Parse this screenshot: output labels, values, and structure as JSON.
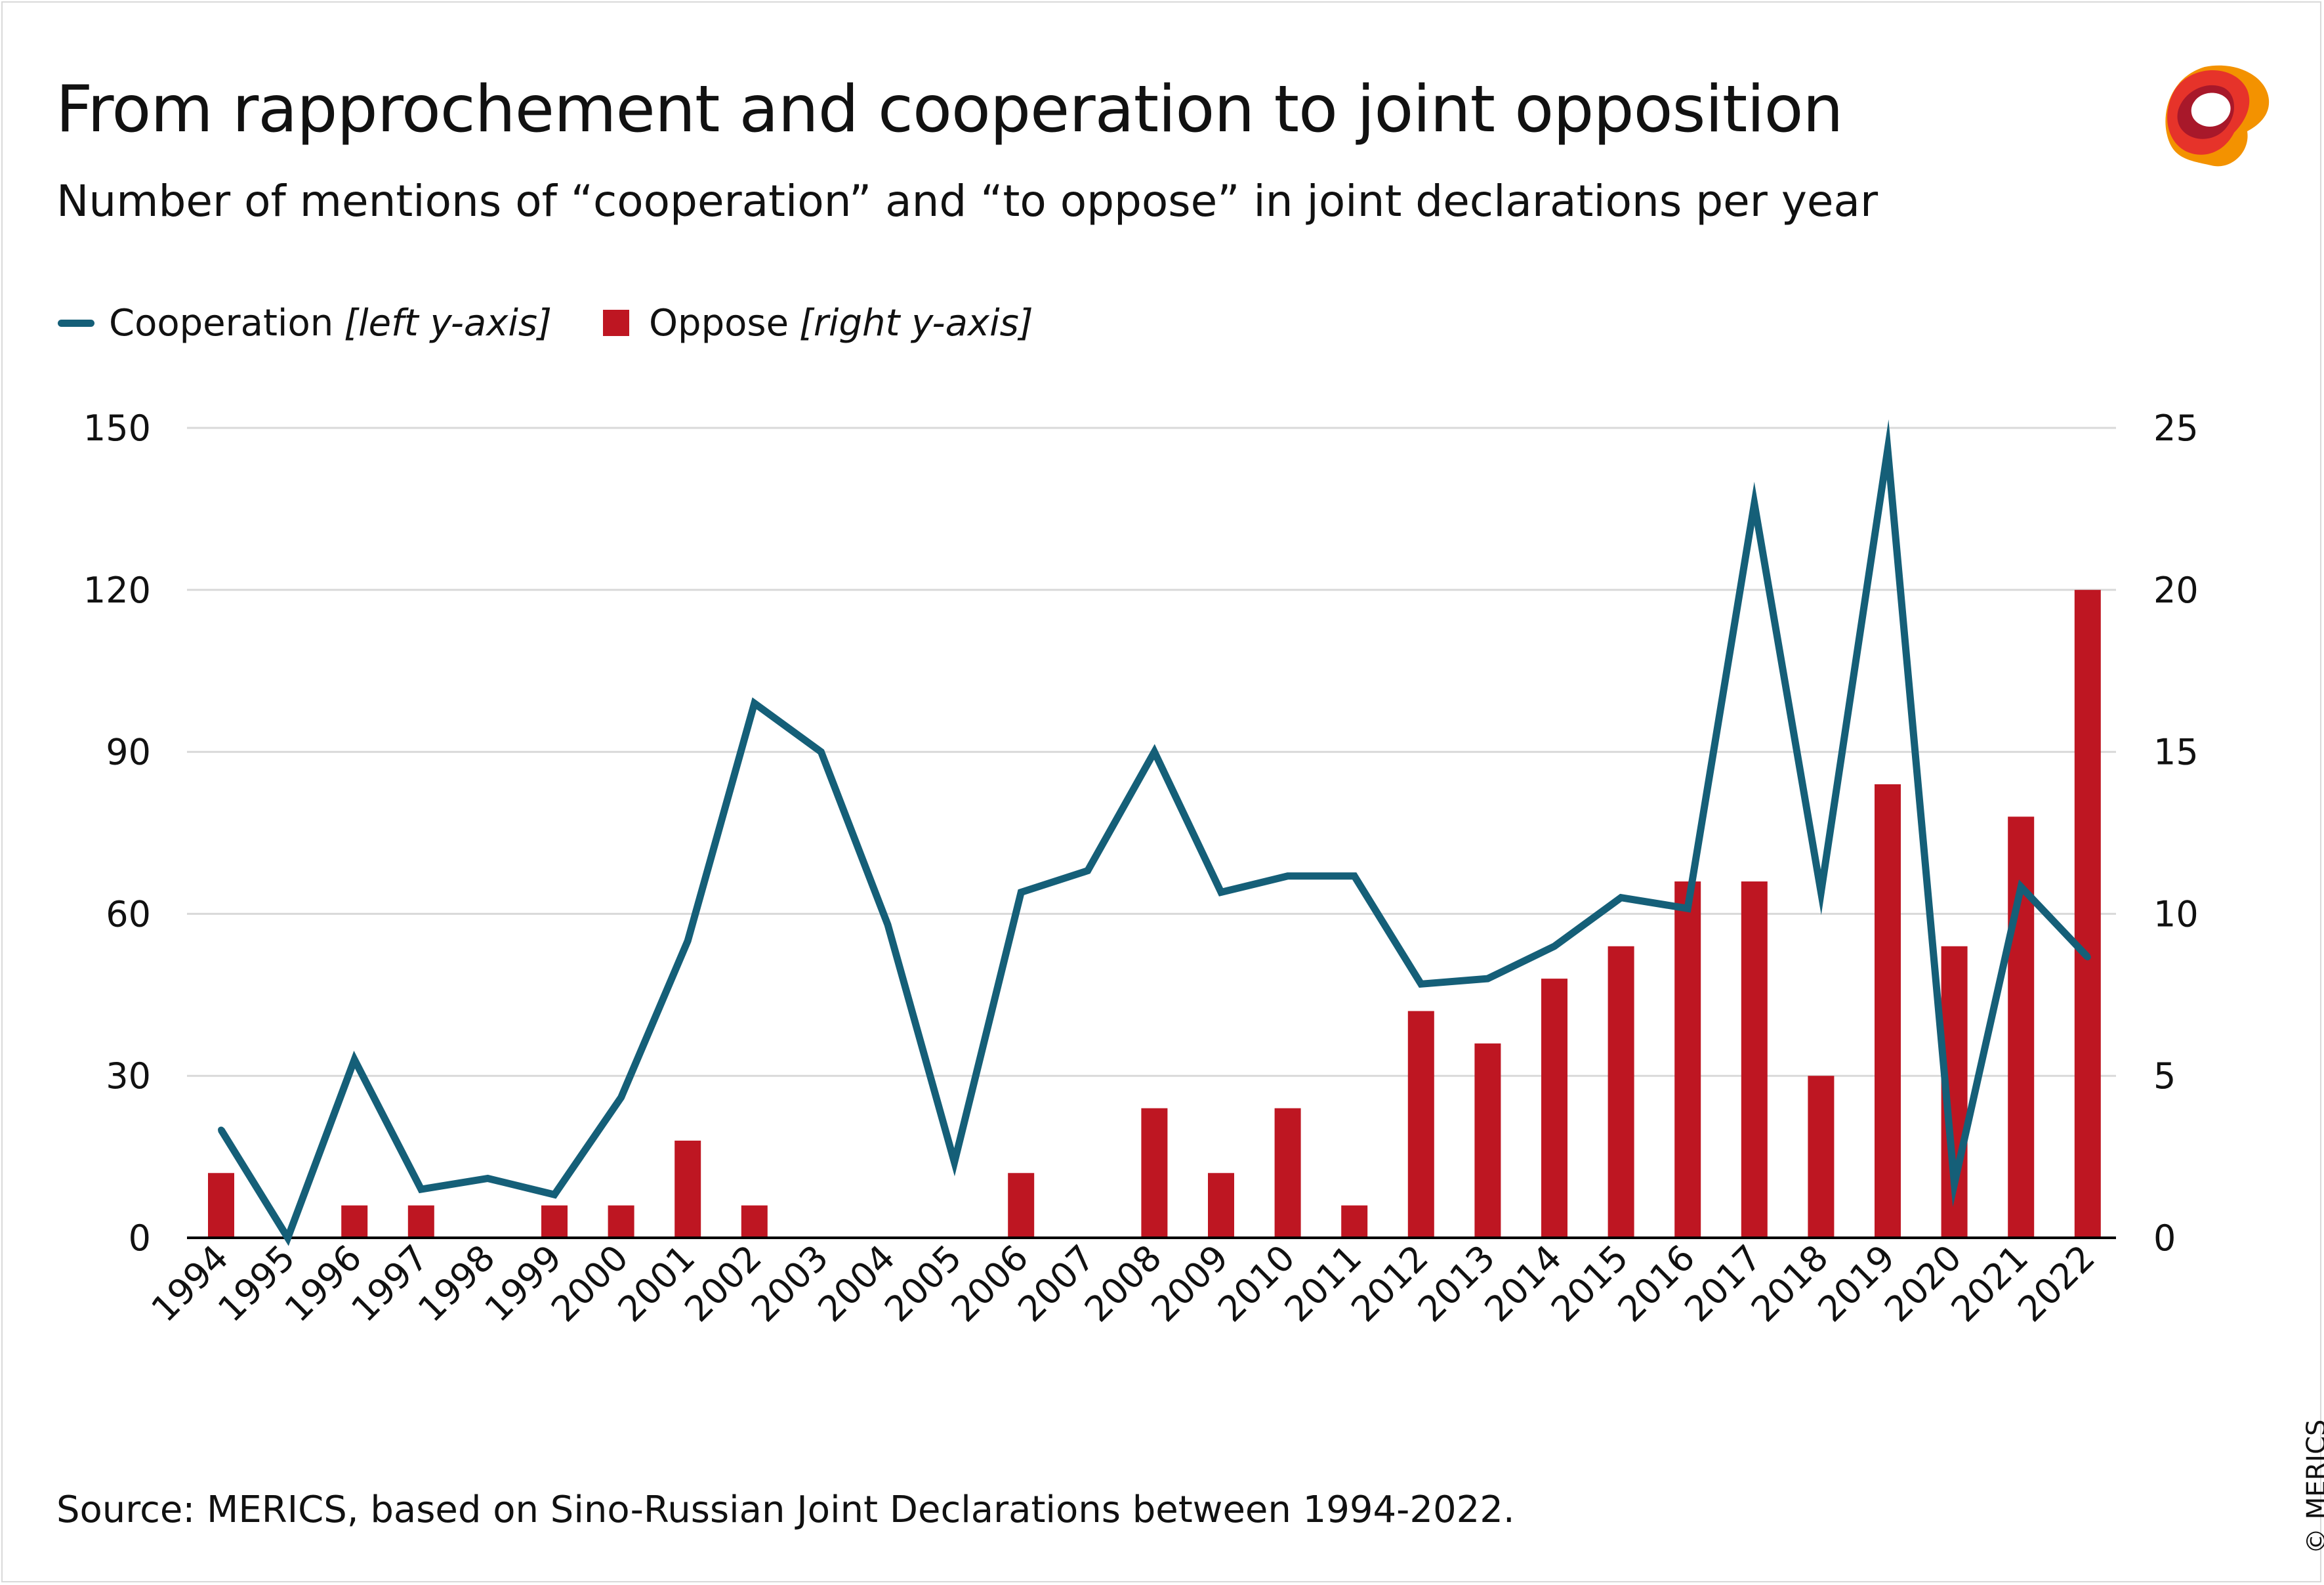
{
  "title": "From rapprochement and cooperation to joint opposition",
  "subtitle": "Number of mentions of “cooperation” and “to oppose” in joint declarations per year",
  "legend": {
    "cooperation": {
      "label": "Cooperation",
      "hint": "[left y-axis]"
    },
    "oppose": {
      "label": "Oppose",
      "hint": "[right y-axis]"
    }
  },
  "source": "Source: MERICS, based on Sino-Russian Joint Declarations between 1994-2022.",
  "copyright": "© MERICS",
  "colors": {
    "cooperation": "#155f78",
    "oppose": "#be1622",
    "grid": "#d9d9d9",
    "axis": "#000000"
  },
  "logo_icon": "merics-logo-icon",
  "chart_data": {
    "type": "bar+line",
    "categories": [
      "1994",
      "1995",
      "1996",
      "1997",
      "1998",
      "1999",
      "2000",
      "2001",
      "2002",
      "2003",
      "2004",
      "2005",
      "2006",
      "2007",
      "2008",
      "2009",
      "2010",
      "2011",
      "2012",
      "2013",
      "2014",
      "2015",
      "2016",
      "2017",
      "2018",
      "2019",
      "2020",
      "2021",
      "2022"
    ],
    "series": [
      {
        "name": "Cooperation",
        "type": "line",
        "axis": "left",
        "values": [
          20,
          0,
          33,
          9,
          11,
          8,
          26,
          55,
          99,
          90,
          58,
          14,
          64,
          68,
          90,
          64,
          67,
          67,
          47,
          48,
          54,
          63,
          61,
          136,
          64,
          146,
          10,
          65,
          52
        ]
      },
      {
        "name": "Oppose",
        "type": "bar",
        "axis": "right",
        "values": [
          2,
          0,
          1,
          1,
          0,
          1,
          1,
          3,
          1,
          0,
          0,
          0,
          2,
          0,
          4,
          2,
          4,
          1,
          7,
          6,
          8,
          9,
          11,
          11,
          5,
          14,
          9,
          13,
          20
        ]
      }
    ],
    "left_axis": {
      "min": 0,
      "max": 150,
      "ticks": [
        0,
        30,
        60,
        90,
        120,
        150
      ]
    },
    "right_axis": {
      "min": 0,
      "max": 25,
      "ticks": [
        0,
        5,
        10,
        15,
        20,
        25
      ]
    },
    "grid": true,
    "legend_position": "top-left"
  }
}
